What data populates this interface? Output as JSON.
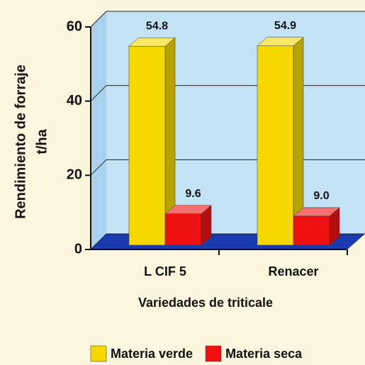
{
  "chart_data": {
    "type": "bar3d",
    "ylabel": [
      "Rendimiento de forraje",
      "t/ha"
    ],
    "xlabel": "Variedades de triticale",
    "categories": [
      "L CIF 5",
      "Renacer"
    ],
    "series": [
      {
        "name": "Materia verde",
        "color": "#f5d800",
        "values": [
          54.8,
          54.9
        ],
        "value_labels": [
          "54.8",
          "54.9"
        ]
      },
      {
        "name": "Materia seca",
        "color": "#ee1111",
        "values": [
          9.6,
          9.0
        ],
        "value_labels": [
          "9.6",
          "9.0"
        ]
      }
    ],
    "ylim": [
      0,
      60
    ],
    "yticks": [
      0,
      20,
      40,
      60
    ],
    "grid": true
  }
}
